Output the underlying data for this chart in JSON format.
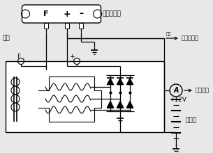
{
  "bg_color": "#e8e8e8",
  "line_color": "#000000",
  "white": "#ffffff",
  "labels": {
    "dianzi": "电子调节器",
    "cichang": "磁场",
    "yibiao": "仪表照明等",
    "kaiguan": "开关",
    "qidongji": "去起动机",
    "v12": "+12V",
    "shudianchi": "蓄电池",
    "F_top": "F",
    "plus_top": "+",
    "minus_top": "–",
    "F_gen": "F",
    "plus_gen": "+",
    "A_label": "A"
  },
  "figsize": [
    3.05,
    2.2
  ],
  "dpi": 100
}
